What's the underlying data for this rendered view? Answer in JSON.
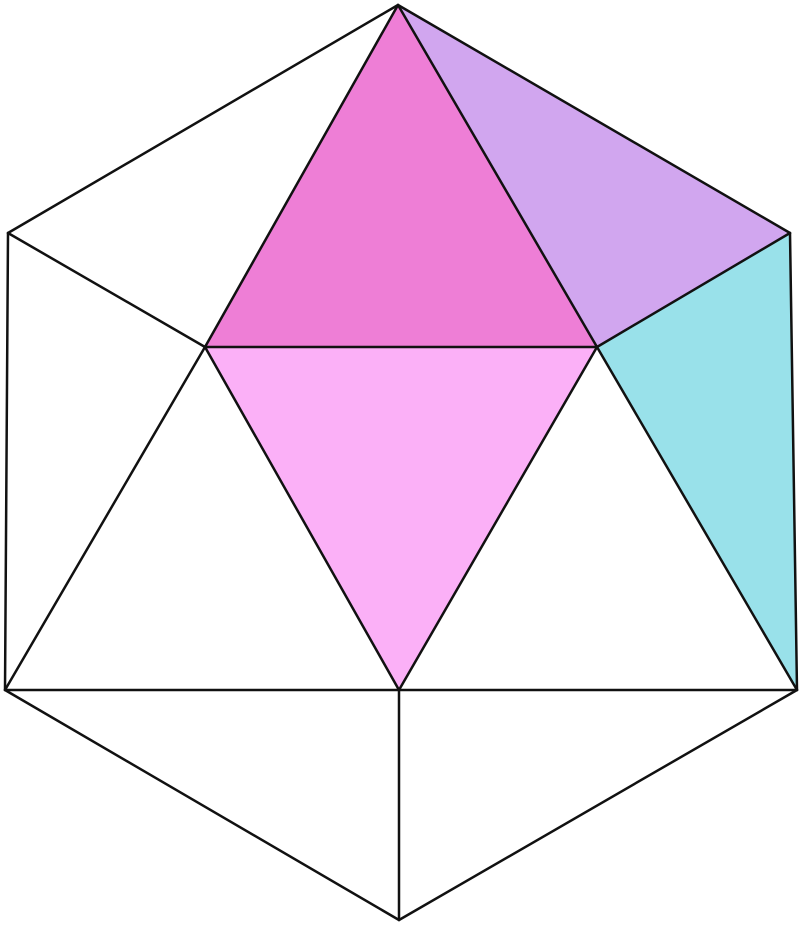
{
  "diagram": {
    "shape": "icosahedron net-style hexagon triangulation",
    "edge_color": "#111111",
    "background": "#ffffff",
    "faces": [
      {
        "name": "top-center-face",
        "color": "#EE7ED6"
      },
      {
        "name": "top-right-face",
        "color": "#D1A6EF"
      },
      {
        "name": "center-face",
        "color": "#FBB0F7"
      },
      {
        "name": "right-face",
        "color": "#99E1EA"
      }
    ]
  }
}
